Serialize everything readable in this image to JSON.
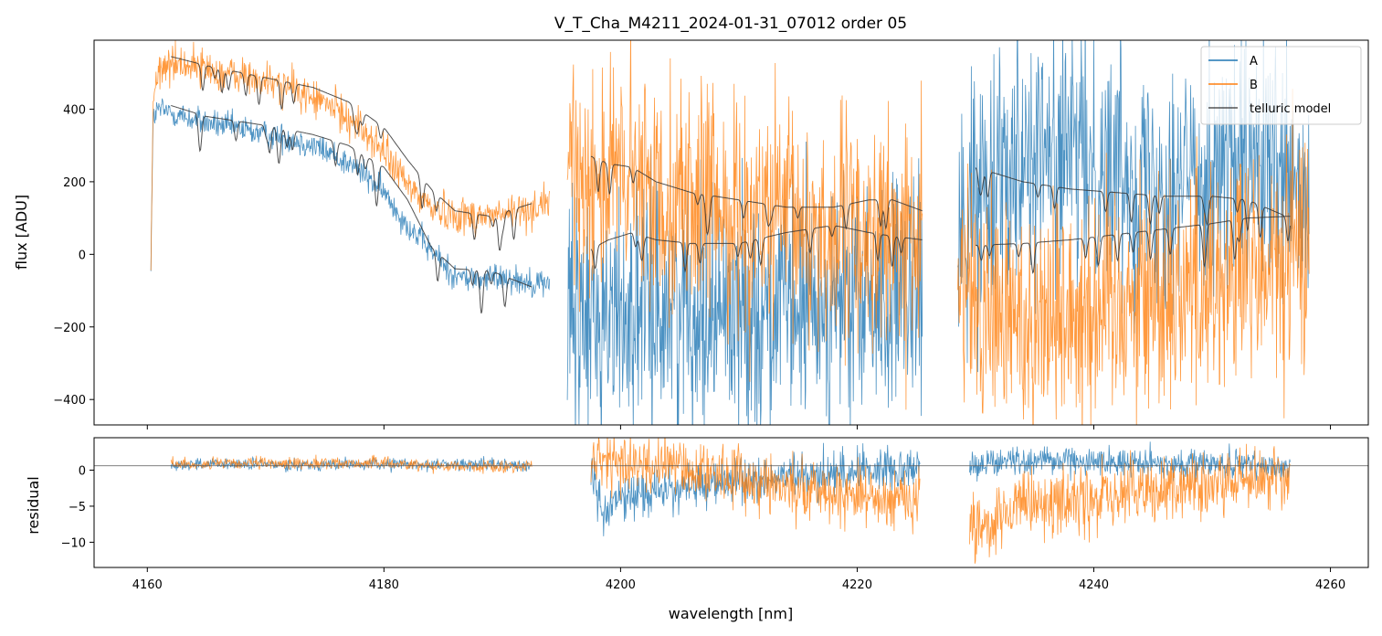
{
  "chart_data": [
    {
      "type": "line",
      "panel": "main",
      "title": "V_T_Cha_M4211_2024-01-31_07012  order 05",
      "xlabel": "",
      "ylabel": "flux [ADU]",
      "xlim": [
        4155.5,
        4263.2
      ],
      "ylim": [
        -470,
        590
      ],
      "xticks": [
        4160,
        4180,
        4200,
        4220,
        4240,
        4260
      ],
      "yticks": [
        -400,
        -200,
        0,
        200,
        400
      ],
      "ytick_labels": [
        "−400",
        "−200",
        "0",
        "200",
        "400"
      ],
      "legend": {
        "position": "top-right",
        "entries": [
          "A",
          "B",
          "telluric model"
        ]
      },
      "colors": {
        "A": "#1f77b4",
        "B": "#ff7f0e",
        "model": "#333333"
      },
      "series": [
        {
          "name": "A",
          "segments": [
            {
              "x": [
                4160.3,
                4160.5,
                4161,
                4162,
                4164,
                4166,
                4168,
                4170,
                4172,
                4174,
                4176,
                4178,
                4180,
                4182,
                4184,
                4186,
                4188,
                4190,
                4192,
                4194
              ],
              "y": [
                -20,
                380,
                400,
                390,
                370,
                355,
                345,
                330,
                320,
                300,
                270,
                230,
                170,
                80,
                10,
                -60,
                -70,
                -60,
                -75,
                -80
              ],
              "noise": 28
            },
            {
              "x": [
                4195.5,
                4197,
                4200,
                4203,
                4206,
                4209,
                4212,
                4215,
                4218,
                4221,
                4224,
                4225.5
              ],
              "y": [
                -200,
                -180,
                -160,
                -150,
                -140,
                -150,
                -160,
                -150,
                -150,
                -140,
                -140,
                -140
              ],
              "noise": 230
            },
            {
              "x": [
                4228.5,
                4230,
                4233,
                4236,
                4239,
                4242,
                4245,
                4248,
                4251,
                4254,
                4256,
                4258.2
              ],
              "y": [
                50,
                150,
                300,
                280,
                260,
                240,
                200,
                220,
                250,
                230,
                200,
                100
              ],
              "noise": 240
            }
          ]
        },
        {
          "name": "B",
          "segments": [
            {
              "x": [
                4160.3,
                4160.5,
                4161,
                4162,
                4164,
                4166,
                4168,
                4170,
                4172,
                4174,
                4176,
                4178,
                4180,
                4182,
                4184,
                4186,
                4188,
                4190,
                4192,
                4194
              ],
              "y": [
                -20,
                430,
                500,
                530,
                520,
                500,
                490,
                475,
                460,
                430,
                400,
                350,
                280,
                190,
                130,
                110,
                105,
                110,
                120,
                150
              ],
              "noise": 38
            },
            {
              "x": [
                4195.5,
                4197,
                4200,
                4203,
                4206,
                4209,
                4212,
                4215,
                4218,
                4221,
                4224,
                4225.5
              ],
              "y": [
                250,
                230,
                200,
                170,
                150,
                120,
                100,
                80,
                60,
                50,
                40,
                30
              ],
              "noise": 230
            },
            {
              "x": [
                4228.5,
                4230,
                4233,
                4236,
                4239,
                4242,
                4245,
                4248,
                4251,
                4254,
                4256,
                4258.2
              ],
              "y": [
                -100,
                -150,
                -180,
                -160,
                -140,
                -120,
                -100,
                -80,
                -60,
                -50,
                -40,
                50
              ],
              "noise": 240
            }
          ]
        }
      ],
      "model": [
        {
          "name": "telluric model (A)",
          "segments": [
            {
              "x": [
                4162,
                4165,
                4168,
                4171,
                4174,
                4177,
                4180,
                4182,
                4184,
                4186,
                4189,
                4192.5
              ],
              "y": [
                410,
                380,
                365,
                350,
                330,
                300,
                240,
                150,
                20,
                -40,
                -45,
                -90
              ],
              "dips": 20
            },
            {
              "x": [
                4197.5,
                4199,
                4201,
                4203,
                4206,
                4210,
                4214,
                4218,
                4221,
                4223,
                4225.5
              ],
              "y": [
                15,
                40,
                60,
                40,
                30,
                30,
                60,
                80,
                60,
                50,
                40
              ],
              "dips": 14
            },
            {
              "x": [
                4230,
                4234,
                4238,
                4242,
                4246,
                4250,
                4253,
                4256.6
              ],
              "y": [
                25,
                30,
                40,
                55,
                70,
                85,
                100,
                105
              ],
              "dips": 16
            }
          ]
        },
        {
          "name": "telluric model (B)",
          "segments": [
            {
              "x": [
                4162,
                4165,
                4168,
                4171,
                4174,
                4177,
                4180,
                4182,
                4184,
                4186,
                4189,
                4192.5
              ],
              "y": [
                545,
                520,
                500,
                480,
                460,
                420,
                350,
                260,
                180,
                120,
                105,
                140
              ],
              "dips": 20
            },
            {
              "x": [
                4197.5,
                4199,
                4201,
                4203,
                4206,
                4210,
                4214,
                4218,
                4221,
                4223,
                4225.5
              ],
              "y": [
                270,
                250,
                240,
                200,
                170,
                150,
                130,
                130,
                150,
                150,
                120
              ],
              "dips": 14
            },
            {
              "x": [
                4230,
                4234,
                4238,
                4242,
                4246,
                4250,
                4253,
                4256.6
              ],
              "y": [
                240,
                200,
                180,
                170,
                160,
                160,
                150,
                100
              ],
              "dips": 16
            }
          ]
        }
      ]
    },
    {
      "type": "line",
      "panel": "residual",
      "title": "",
      "xlabel": "wavelength [nm]",
      "ylabel": "residual",
      "xlim": [
        4155.5,
        4263.2
      ],
      "ylim": [
        -13.5,
        4.5
      ],
      "xticks": [
        4160,
        4180,
        4200,
        4220,
        4240,
        4260
      ],
      "xtick_labels": [
        "4160",
        "4180",
        "4200",
        "4220",
        "4240",
        "4260"
      ],
      "yticks": [
        -10,
        -5,
        0
      ],
      "ytick_labels": [
        "−10",
        "−5",
        "0"
      ],
      "reference_line": 0.6,
      "series": [
        {
          "name": "A",
          "segments": [
            {
              "x": [
                4162,
                4170,
                4180,
                4185,
                4190,
                4192.5
              ],
              "y": [
                0.8,
                0.8,
                0.8,
                0.8,
                0.8,
                0.8
              ],
              "noise": 0.6
            },
            {
              "x": [
                4197.5,
                4198.5,
                4200,
                4202,
                4205,
                4210,
                4215,
                4220,
                4225.3
              ],
              "y": [
                0,
                -6,
                -4,
                -3,
                -2.5,
                -1.5,
                -1,
                0,
                0.5
              ],
              "noise": 2.2
            },
            {
              "x": [
                4229.5,
                4235,
                4240,
                4245,
                4250,
                4256.6
              ],
              "y": [
                0.8,
                1.5,
                1.2,
                1.0,
                0.8,
                0.5
              ],
              "noise": 1.4
            }
          ]
        },
        {
          "name": "B",
          "segments": [
            {
              "x": [
                4162,
                4170,
                4180,
                4185,
                4190,
                4192.5
              ],
              "y": [
                0.8,
                0.9,
                1.0,
                0.6,
                0.4,
                0.7
              ],
              "noise": 0.6
            },
            {
              "x": [
                4197.5,
                4200,
                4205,
                4210,
                4215,
                4220,
                4225.3
              ],
              "y": [
                1.0,
                1.0,
                0.5,
                -1,
                -2.5,
                -3.5,
                -4
              ],
              "noise": 3
            },
            {
              "x": [
                4229.5,
                4231,
                4235,
                4240,
                4245,
                4250,
                4256.6
              ],
              "y": [
                -8,
                -7,
                -5,
                -4,
                -3,
                -2,
                -1
              ],
              "noise": 3.5
            }
          ]
        }
      ]
    }
  ]
}
